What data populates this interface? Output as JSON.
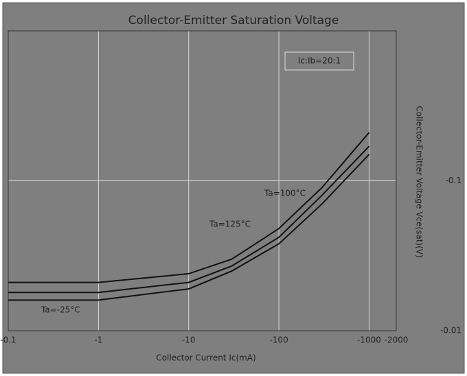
{
  "chart_data": {
    "type": "line",
    "title": "Collector-Emitter Saturation Voltage",
    "annotation": "Ic:Ib=20:1",
    "x_label": "Collector Current   Ic(mA)",
    "y_label": "Collector-Emitter Voltage Vce(sat)(V)",
    "x": [
      -0.1,
      -1,
      -10,
      -30,
      -100,
      -300,
      -1000
    ],
    "series": [
      {
        "name": "Ta=-25°C",
        "color": "#111111",
        "values": [
          -0.021,
          -0.021,
          -0.024,
          -0.03,
          -0.048,
          -0.09,
          -0.21
        ]
      },
      {
        "name": "Ta=100°C",
        "color": "#111111",
        "values": [
          -0.018,
          -0.018,
          -0.021,
          -0.027,
          -0.042,
          -0.08,
          -0.17
        ]
      },
      {
        "name": "Ta=125°C",
        "color": "#111111",
        "values": [
          -0.016,
          -0.016,
          -0.019,
          -0.025,
          -0.038,
          -0.07,
          -0.15
        ]
      }
    ],
    "xlim": [
      -0.1,
      -2000
    ],
    "xticks": [
      -0.1,
      -1,
      -10,
      -100,
      -1000,
      -2000
    ],
    "ylim": [
      -0.01,
      -1
    ],
    "yticks": [
      -0.1,
      -0.01
    ],
    "xscale": "log",
    "yscale": "log",
    "grid": true
  }
}
